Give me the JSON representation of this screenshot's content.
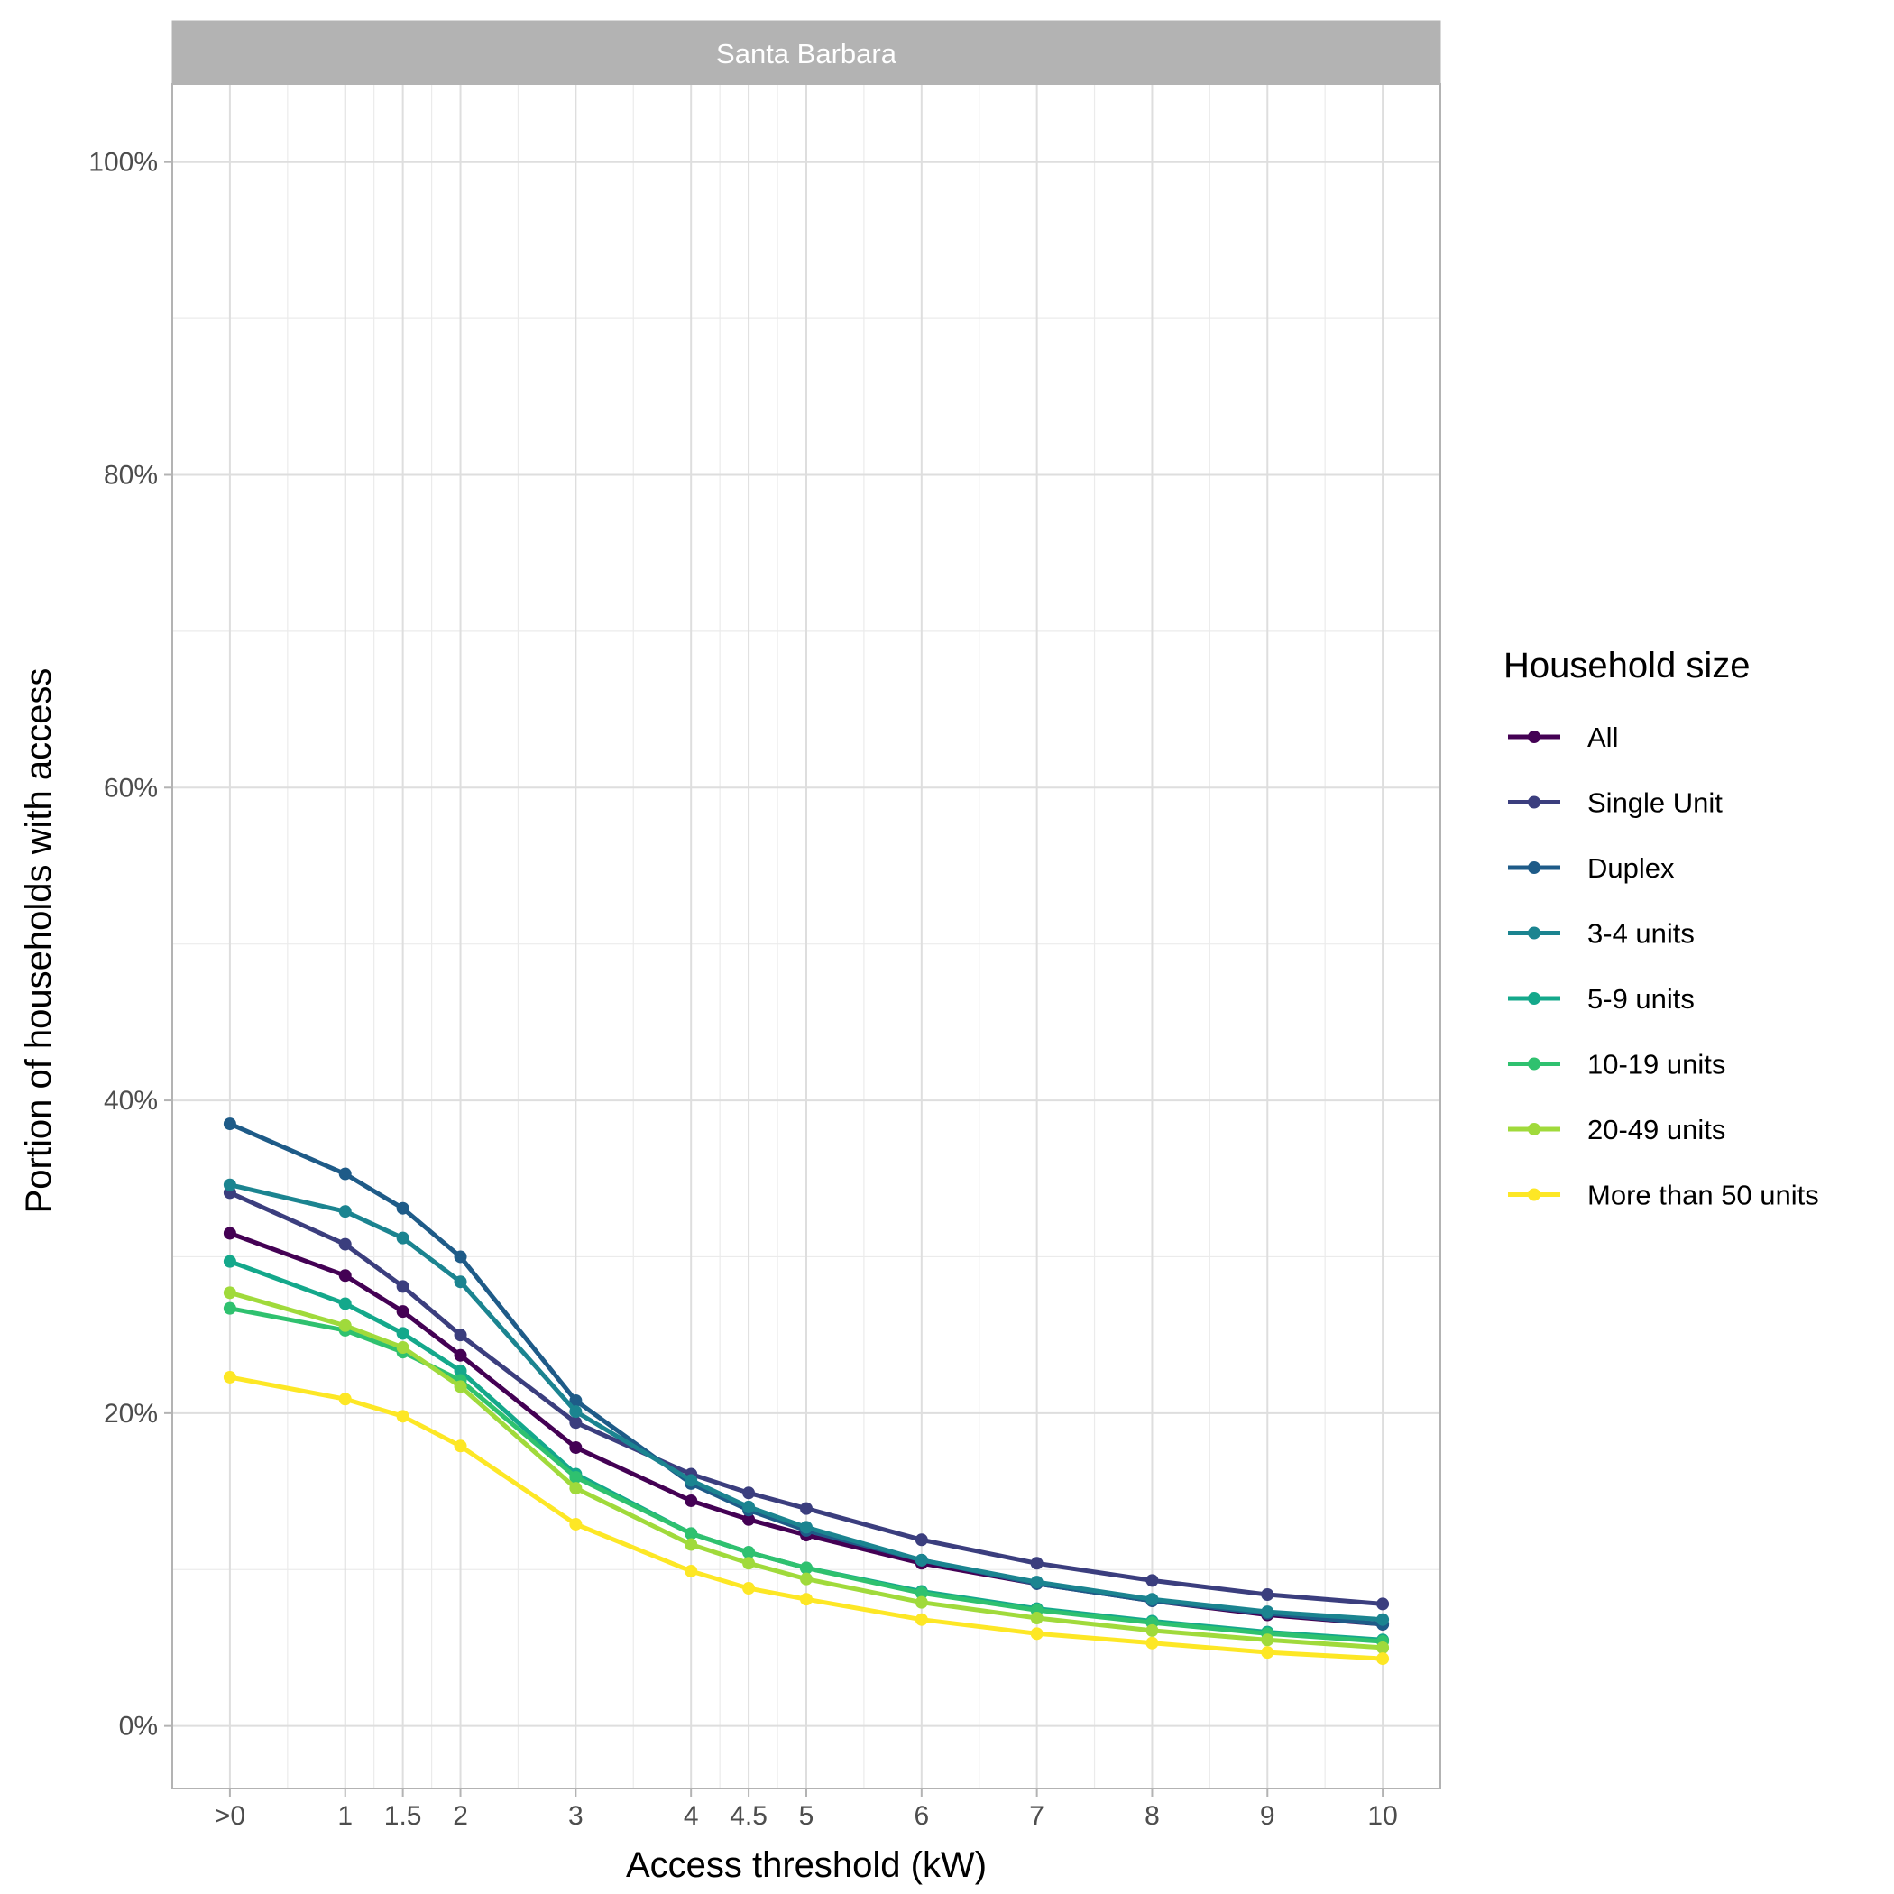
{
  "chart_data": {
    "type": "line",
    "facet": "Santa Barbara",
    "xlabel": "Access threshold (kW)",
    "ylabel": "Portion of households with access",
    "x": [
      0,
      1,
      1.5,
      2,
      3,
      4,
      4.5,
      5,
      6,
      7,
      8,
      9,
      10
    ],
    "x_tick_labels": [
      ">0",
      "1",
      "1.5",
      "2",
      "3",
      "4",
      "4.5",
      "5",
      "6",
      "7",
      "8",
      "9",
      "10"
    ],
    "y_ticks": [
      0,
      0.2,
      0.4,
      0.6,
      0.8,
      1.0
    ],
    "y_tick_labels": [
      "0%",
      "20%",
      "40%",
      "60%",
      "80%",
      "100%"
    ],
    "xlim": [
      -0.5,
      10.5
    ],
    "ylim": [
      -0.04,
      1.05
    ],
    "grid": true,
    "legend_title": "Household size",
    "legend_position": "right",
    "series": [
      {
        "name": "All",
        "color": "#440154",
        "values": [
          0.315,
          0.288,
          0.265,
          0.237,
          0.178,
          0.144,
          0.132,
          0.122,
          0.104,
          0.091,
          0.08,
          0.071,
          0.065
        ]
      },
      {
        "name": "Single Unit",
        "color": "#3B3E7E",
        "values": [
          0.341,
          0.308,
          0.281,
          0.25,
          0.194,
          0.161,
          0.149,
          0.139,
          0.119,
          0.104,
          0.093,
          0.084,
          0.078
        ]
      },
      {
        "name": "Duplex",
        "color": "#1E5B88",
        "values": [
          0.385,
          0.353,
          0.331,
          0.3,
          0.208,
          0.155,
          0.138,
          0.125,
          0.106,
          0.091,
          0.08,
          0.072,
          0.065
        ]
      },
      {
        "name": "3-4 units",
        "color": "#1B8490",
        "values": [
          0.346,
          0.329,
          0.312,
          0.284,
          0.201,
          0.157,
          0.14,
          0.127,
          0.106,
          0.092,
          0.081,
          0.073,
          0.068
        ]
      },
      {
        "name": "5-9 units",
        "color": "#14A88B",
        "values": [
          0.297,
          0.27,
          0.251,
          0.227,
          0.161,
          0.123,
          0.111,
          0.101,
          0.086,
          0.075,
          0.067,
          0.06,
          0.055
        ]
      },
      {
        "name": "10-19 units",
        "color": "#2FC16F",
        "values": [
          0.267,
          0.253,
          0.239,
          0.221,
          0.159,
          0.123,
          0.111,
          0.101,
          0.085,
          0.074,
          0.066,
          0.059,
          0.054
        ]
      },
      {
        "name": "20-49 units",
        "color": "#A0DA3B",
        "values": [
          0.277,
          0.256,
          0.242,
          0.217,
          0.152,
          0.116,
          0.104,
          0.094,
          0.079,
          0.069,
          0.061,
          0.055,
          0.05
        ]
      },
      {
        "name": "More than 50 units",
        "color": "#FDE725",
        "values": [
          0.223,
          0.209,
          0.198,
          0.179,
          0.129,
          0.099,
          0.088,
          0.081,
          0.068,
          0.059,
          0.053,
          0.047,
          0.043
        ]
      }
    ]
  }
}
